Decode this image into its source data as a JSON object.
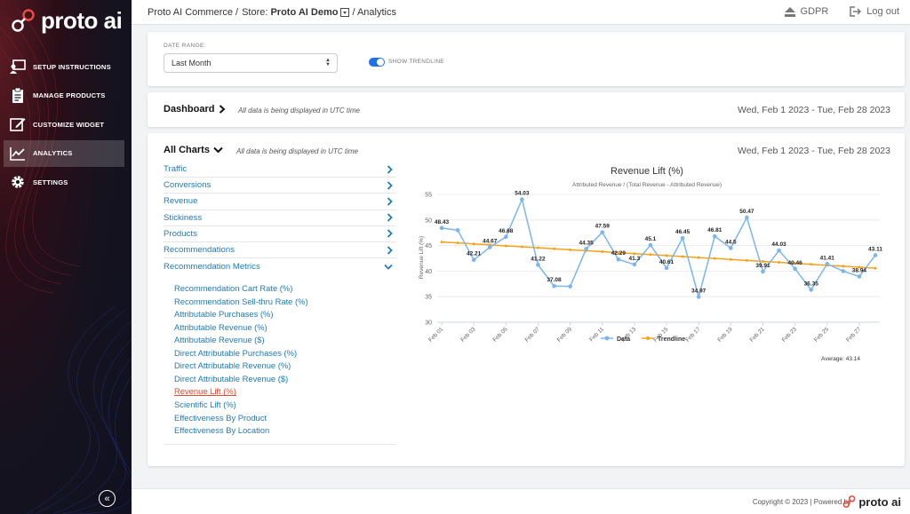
{
  "brand": {
    "logo_text": "proto ai"
  },
  "header": {
    "crumb_company": "Proto AI Commerce /",
    "crumb_store_prefix": "Store:",
    "crumb_store": "Proto AI Demo",
    "crumb_page": "/ Analytics",
    "gdpr_label": "GDPR",
    "logout_label": "Log out"
  },
  "sidebar": {
    "items": [
      {
        "label": "SETUP INSTRUCTIONS",
        "icon": "presentation-icon"
      },
      {
        "label": "MANAGE PRODUCTS",
        "icon": "clipboard-icon"
      },
      {
        "label": "CUSTOMIZE WIDGET",
        "icon": "edit-icon"
      },
      {
        "label": "ANALYTICS",
        "icon": "chart-line-icon",
        "active": true
      },
      {
        "label": "SETTINGS",
        "icon": "gear-icon"
      }
    ]
  },
  "filters": {
    "date_range_label": "DATE RANGE:",
    "date_range_value": "Last Month",
    "trendline_label": "SHOW TRENDLINE",
    "trendline_on": true
  },
  "dashboard": {
    "title": "Dashboard",
    "note": "All data is being displayed in UTC time",
    "range": "Wed, Feb 1 2023 - Tue, Feb 28 2023"
  },
  "all_charts": {
    "title": "All Charts",
    "note": "All data is being displayed in UTC time",
    "range": "Wed, Feb 1 2023 - Tue, Feb 28 2023",
    "menu": [
      {
        "label": "Traffic"
      },
      {
        "label": "Conversions"
      },
      {
        "label": "Revenue"
      },
      {
        "label": "Stickiness"
      },
      {
        "label": "Products"
      },
      {
        "label": "Recommendations"
      },
      {
        "label": "Recommendation Metrics",
        "expanded": true
      }
    ],
    "sub_items": [
      {
        "label": "Recommendation Cart Rate (%)"
      },
      {
        "label": "Recommendation Sell-thru Rate (%)"
      },
      {
        "label": "Attributable Purchases (%)"
      },
      {
        "label": "Attributable Revenue (%)"
      },
      {
        "label": "Attributable Revenue ($)"
      },
      {
        "label": "Direct Attributable Purchases (%)"
      },
      {
        "label": "Direct Attributable Revenue (%)"
      },
      {
        "label": "Direct Attributable Revenue ($)"
      },
      {
        "label": "Revenue Lift (%)",
        "active": true
      },
      {
        "label": "Scientific Lift (%)"
      },
      {
        "label": "Effectiveness By Product"
      },
      {
        "label": "Effectiveness By Location"
      }
    ]
  },
  "chart_data": {
    "type": "line",
    "title": "Revenue Lift (%)",
    "subtitle": "Attributed Revenue / (Total Revenue - Attributed Revenue)",
    "ylabel": "Revenue Lift (%)",
    "xlabel": "",
    "ylim": [
      30,
      55
    ],
    "yticks": [
      30,
      35,
      40,
      45,
      50,
      55
    ],
    "x": [
      "Feb 01",
      "Feb 02",
      "Feb 03",
      "Feb 04",
      "Feb 05",
      "Feb 06",
      "Feb 07",
      "Feb 08",
      "Feb 09",
      "Feb 10",
      "Feb 11",
      "Feb 12",
      "Feb 13",
      "Feb 14",
      "Feb 15",
      "Feb 16",
      "Feb 17",
      "Feb 18",
      "Feb 19",
      "Feb 20",
      "Feb 21",
      "Feb 22",
      "Feb 23",
      "Feb 24",
      "Feb 25",
      "Feb 26",
      "Feb 27",
      "Feb 28"
    ],
    "xtick_labels": [
      "Feb 01",
      "Feb 03",
      "Feb 05",
      "Feb 07",
      "Feb 09",
      "Feb 11",
      "Feb 13",
      "Feb 15",
      "Feb 17",
      "Feb 19",
      "Feb 21",
      "Feb 23",
      "Feb 25",
      "Feb 27"
    ],
    "series": [
      {
        "name": "Data",
        "color": "#7cb5ec",
        "values": [
          48.43,
          48.0,
          42.21,
          44.67,
          46.68,
          54.03,
          41.22,
          37.08,
          37.0,
          44.35,
          47.59,
          42.29,
          41.3,
          45.1,
          40.61,
          46.45,
          34.97,
          46.81,
          44.5,
          50.47,
          39.91,
          44.03,
          40.46,
          36.35,
          41.41,
          40.0,
          38.94,
          43.11
        ],
        "labels": [
          "48.43",
          "",
          "42.21",
          "44.67",
          "46.68",
          "54.03",
          "41.22",
          "37.08",
          "",
          "44.35",
          "47.59",
          "42.29",
          "41.3",
          "45.1",
          "40.61",
          "46.45",
          "34.97",
          "46.81",
          "44.5",
          "50.47",
          "39.91",
          "44.03",
          "40.46",
          "36.35",
          "41.41",
          "",
          "38.94",
          "43.11"
        ]
      },
      {
        "name": "Trendline",
        "color": "#f7a21b",
        "values": [
          45.7,
          45.51,
          45.32,
          45.13,
          44.94,
          44.75,
          44.56,
          44.37,
          44.18,
          43.99,
          43.8,
          43.61,
          43.42,
          43.23,
          43.04,
          42.85,
          42.66,
          42.47,
          42.28,
          42.09,
          41.9,
          41.71,
          41.52,
          41.33,
          41.14,
          40.95,
          40.76,
          40.57
        ]
      }
    ],
    "legend": "bottom",
    "grid": true,
    "average_label": "Average: 43.14"
  },
  "footer": {
    "copyright": "Copyright © 2023 | Powered by",
    "logo_text": "proto ai"
  }
}
